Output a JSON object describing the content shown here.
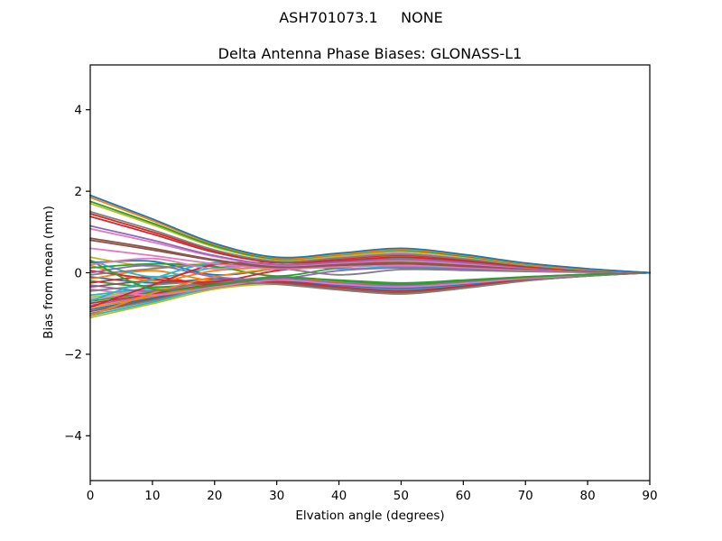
{
  "chart_data": {
    "type": "line",
    "suptitle": "ASH701073.1     NONE",
    "title": "Delta Antenna Phase Biases: GLONASS-L1",
    "xlabel": "Elvation angle (degrees)",
    "ylabel": "Bias from mean (mm)",
    "xlim": [
      0,
      90
    ],
    "ylim": [
      -5.1,
      5.1
    ],
    "xticks": [
      0,
      10,
      20,
      30,
      40,
      50,
      60,
      70,
      80,
      90
    ],
    "yticks": [
      -4,
      -2,
      0,
      2,
      4
    ],
    "grid": false,
    "legend": "none",
    "x": [
      0,
      10,
      20,
      30,
      40,
      50,
      60,
      70,
      80,
      90
    ],
    "series": [
      {
        "color": "#17becf",
        "values": [
          -0.55,
          -0.38,
          -0.25,
          -0.15,
          -0.22,
          -0.28,
          -0.2,
          -0.11,
          -0.04,
          0
        ]
      },
      {
        "color": "#bcbd22",
        "values": [
          -0.6,
          -0.42,
          -0.28,
          -0.18,
          -0.26,
          -0.33,
          -0.24,
          -0.13,
          -0.05,
          0
        ]
      },
      {
        "color": "#e377c2",
        "values": [
          -0.65,
          -0.45,
          -0.24,
          -0.12,
          -0.2,
          -0.26,
          -0.19,
          -0.1,
          -0.04,
          0
        ]
      },
      {
        "color": "#2ca02c",
        "values": [
          -0.7,
          -0.48,
          -0.3,
          -0.2,
          -0.3,
          -0.38,
          -0.28,
          -0.15,
          -0.06,
          0
        ]
      },
      {
        "color": "#d62728",
        "values": [
          -0.75,
          -0.52,
          -0.28,
          -0.14,
          -0.24,
          -0.3,
          -0.22,
          -0.12,
          -0.05,
          0
        ]
      },
      {
        "color": "#9467bd",
        "values": [
          -0.8,
          -0.55,
          -0.32,
          -0.22,
          -0.32,
          -0.42,
          -0.3,
          -0.16,
          -0.06,
          0
        ]
      },
      {
        "color": "#ff7f0e",
        "values": [
          -0.85,
          -0.58,
          -0.3,
          -0.16,
          -0.26,
          -0.34,
          -0.25,
          -0.13,
          -0.05,
          0
        ]
      },
      {
        "color": "#1f77b4",
        "values": [
          -0.9,
          -0.62,
          -0.35,
          -0.24,
          -0.36,
          -0.46,
          -0.34,
          -0.18,
          -0.07,
          0
        ]
      },
      {
        "color": "#8c564b",
        "values": [
          -0.95,
          -0.65,
          -0.32,
          -0.18,
          -0.28,
          -0.36,
          -0.26,
          -0.14,
          -0.06,
          0
        ]
      },
      {
        "color": "#7f7f7f",
        "values": [
          -1.0,
          -0.68,
          -0.38,
          -0.26,
          -0.38,
          -0.48,
          -0.35,
          -0.18,
          -0.07,
          0
        ]
      },
      {
        "color": "#17becf",
        "values": [
          -1.05,
          -0.72,
          -0.35,
          -0.2,
          -0.3,
          -0.4,
          -0.29,
          -0.15,
          -0.06,
          0
        ]
      },
      {
        "color": "#bcbd22",
        "values": [
          -1.1,
          -0.76,
          -0.4,
          -0.28,
          -0.4,
          -0.52,
          -0.38,
          -0.2,
          -0.08,
          0
        ]
      },
      {
        "color": "#1f77b4",
        "values": [
          -0.1,
          -0.25,
          -0.15,
          -0.2,
          -0.3,
          -0.38,
          -0.28,
          -0.15,
          -0.06,
          0
        ]
      },
      {
        "color": "#ff7f0e",
        "values": [
          -0.15,
          0.05,
          -0.2,
          -0.1,
          -0.22,
          -0.3,
          -0.22,
          -0.12,
          -0.05,
          0
        ]
      },
      {
        "color": "#2ca02c",
        "values": [
          -0.2,
          -0.35,
          -0.25,
          -0.12,
          -0.18,
          -0.25,
          -0.18,
          -0.1,
          -0.04,
          0
        ]
      },
      {
        "color": "#d62728",
        "values": [
          -0.25,
          -0.1,
          -0.3,
          -0.22,
          -0.35,
          -0.45,
          -0.33,
          -0.17,
          -0.07,
          0
        ]
      },
      {
        "color": "#9467bd",
        "values": [
          -0.3,
          -0.45,
          -0.2,
          -0.15,
          -0.25,
          -0.32,
          -0.24,
          -0.13,
          -0.05,
          0
        ]
      },
      {
        "color": "#8c564b",
        "values": [
          -0.35,
          -0.2,
          -0.28,
          -0.25,
          -0.4,
          -0.5,
          -0.36,
          -0.19,
          -0.08,
          0
        ]
      },
      {
        "color": "#e377c2",
        "values": [
          -0.4,
          -0.55,
          -0.35,
          -0.18,
          -0.28,
          -0.35,
          -0.26,
          -0.14,
          -0.06,
          0
        ]
      },
      {
        "color": "#7f7f7f",
        "values": [
          -0.45,
          -0.3,
          -0.22,
          -0.28,
          -0.42,
          -0.52,
          -0.38,
          -0.2,
          -0.08,
          0
        ]
      },
      {
        "color": "#bcbd22",
        "values": [
          0.38,
          0.15,
          0.22,
          0.08,
          0.18,
          0.28,
          0.2,
          0.1,
          0.04,
          0
        ]
      },
      {
        "color": "#17becf",
        "values": [
          0.3,
          -0.1,
          0.12,
          0.2,
          0.1,
          0.15,
          0.12,
          0.06,
          0.02,
          0
        ]
      },
      {
        "color": "#1f77b4",
        "values": [
          0.25,
          0.28,
          -0.05,
          0.1,
          0.25,
          0.35,
          0.26,
          0.14,
          0.05,
          0
        ]
      },
      {
        "color": "#ff7f0e",
        "values": [
          0.18,
          -0.2,
          0.05,
          0.15,
          0.3,
          0.4,
          0.3,
          0.16,
          0.06,
          0
        ]
      },
      {
        "color": "#2ca02c",
        "values": [
          0.12,
          0.22,
          0.15,
          -0.08,
          0.12,
          0.22,
          0.16,
          0.08,
          0.03,
          0
        ]
      },
      {
        "color": "#d62728",
        "values": [
          0.05,
          -0.15,
          -0.22,
          0.05,
          0.2,
          0.3,
          0.22,
          0.12,
          0.05,
          0
        ]
      },
      {
        "color": "#9467bd",
        "values": [
          0.0,
          0.18,
          -0.1,
          -0.15,
          0.05,
          0.12,
          0.09,
          0.05,
          0.02,
          0
        ]
      },
      {
        "color": "#7f7f7f",
        "values": [
          -0.05,
          0.1,
          0.2,
          0.12,
          -0.05,
          0.08,
          0.06,
          0.03,
          0.01,
          0
        ]
      },
      {
        "color": "#d62728",
        "values": [
          -0.85,
          -0.3,
          0.2,
          0.25,
          0.35,
          0.45,
          0.33,
          0.17,
          0.07,
          0
        ]
      },
      {
        "color": "#17becf",
        "values": [
          -0.7,
          -0.15,
          0.25,
          0.15,
          0.28,
          0.36,
          0.27,
          0.14,
          0.05,
          0
        ]
      },
      {
        "color": "#ff7f0e",
        "values": [
          -1.05,
          -0.5,
          -0.1,
          0.1,
          0.22,
          0.3,
          0.22,
          0.12,
          0.05,
          0
        ]
      },
      {
        "color": "#2ca02c",
        "values": [
          0.3,
          -0.4,
          -0.3,
          -0.1,
          -0.2,
          -0.28,
          -0.2,
          -0.11,
          -0.04,
          0
        ]
      },
      {
        "color": "#e377c2",
        "values": [
          0.2,
          0.35,
          0.1,
          0.28,
          0.38,
          0.48,
          0.35,
          0.18,
          0.07,
          0
        ]
      },
      {
        "color": "#e377c2",
        "values": [
          0.6,
          0.42,
          0.22,
          0.1,
          0.14,
          0.18,
          0.13,
          0.07,
          0.03,
          0
        ]
      },
      {
        "color": "#8c564b",
        "values": [
          0.8,
          0.56,
          0.3,
          0.13,
          0.18,
          0.22,
          0.16,
          0.09,
          0.04,
          0
        ]
      },
      {
        "color": "#8c564b",
        "values": [
          0.85,
          0.6,
          0.32,
          0.15,
          0.2,
          0.25,
          0.18,
          0.1,
          0.04,
          0
        ]
      },
      {
        "color": "#e377c2",
        "values": [
          1.08,
          0.75,
          0.4,
          0.18,
          0.24,
          0.3,
          0.22,
          0.12,
          0.05,
          0
        ]
      },
      {
        "color": "#9467bd",
        "values": [
          1.15,
          0.8,
          0.42,
          0.2,
          0.26,
          0.33,
          0.25,
          0.13,
          0.05,
          0
        ]
      },
      {
        "color": "#d62728",
        "values": [
          1.38,
          0.95,
          0.5,
          0.25,
          0.3,
          0.38,
          0.29,
          0.15,
          0.06,
          0
        ]
      },
      {
        "color": "#d62728",
        "values": [
          1.45,
          1.0,
          0.54,
          0.27,
          0.34,
          0.43,
          0.32,
          0.17,
          0.07,
          0
        ]
      },
      {
        "color": "#7f7f7f",
        "values": [
          1.5,
          1.05,
          0.56,
          0.28,
          0.36,
          0.45,
          0.34,
          0.18,
          0.07,
          0
        ]
      },
      {
        "color": "#bcbd22",
        "values": [
          1.7,
          1.18,
          0.63,
          0.32,
          0.41,
          0.52,
          0.39,
          0.2,
          0.08,
          0
        ]
      },
      {
        "color": "#2ca02c",
        "values": [
          1.75,
          1.22,
          0.66,
          0.34,
          0.44,
          0.55,
          0.41,
          0.21,
          0.09,
          0
        ]
      },
      {
        "color": "#ff7f0e",
        "values": [
          1.85,
          1.28,
          0.7,
          0.36,
          0.45,
          0.57,
          0.43,
          0.22,
          0.09,
          0
        ]
      },
      {
        "color": "#1f77b4",
        "values": [
          1.9,
          1.32,
          0.72,
          0.38,
          0.48,
          0.6,
          0.45,
          0.24,
          0.1,
          0
        ]
      }
    ]
  }
}
